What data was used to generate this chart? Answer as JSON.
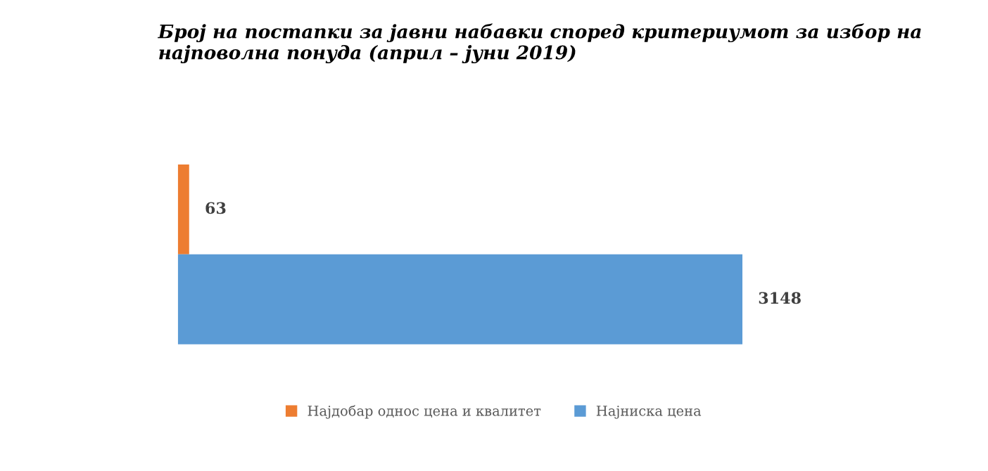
{
  "chart_data": {
    "type": "bar",
    "orientation": "horizontal",
    "title": "Број на постапки за јавни набавки според критериумот за избор на најповолна понуда (април – јуни 2019)",
    "categories": [
      null
    ],
    "series": [
      {
        "name": "Најдобар однос цена и квалитет",
        "color": "#ed7d31",
        "values": [
          63
        ]
      },
      {
        "name": "Најниска цена",
        "color": "#5b9bd5",
        "values": [
          3148
        ]
      }
    ],
    "data_labels": true,
    "legend": "bottom"
  }
}
